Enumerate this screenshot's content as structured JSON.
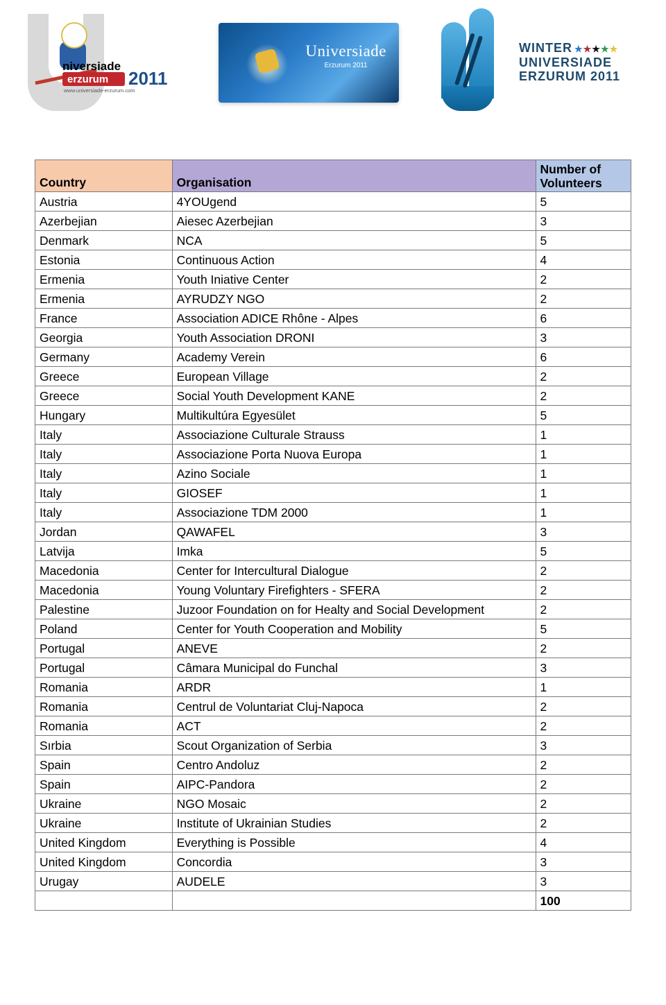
{
  "header_logos": {
    "logo1_text_top": "niversiade",
    "logo1_erzurum": "erzurum",
    "logo1_year": "2011",
    "logo1_url": "www.universiade-erzurum.com",
    "logo2_title": "Universiade",
    "logo2_subtitle": "Erzurum 2011",
    "logo3_line1": "WINTER",
    "logo3_line2": "UNIVERSIADE",
    "logo3_line3": "ERZURUM 2011",
    "star_colors": [
      "#2a7bc8",
      "#b03030",
      "#101010",
      "#2e9c4e",
      "#e6c13a"
    ]
  },
  "table": {
    "headers": {
      "country": "Country",
      "organisation": "Organisation",
      "volunteers_l1": "Number of",
      "volunteers_l2": "Volunteers"
    },
    "header_colors": {
      "country": "#f7caac",
      "organisation": "#b4a7d6",
      "volunteers": "#b4c7e7"
    },
    "border_color": "#7a7a7a",
    "font_size_pt": 13,
    "column_widths_pct": [
      23,
      61,
      16
    ],
    "rows": [
      {
        "country": "Austria",
        "organisation": "4YOUgend",
        "volunteers": "5"
      },
      {
        "country": "Azerbejian",
        "organisation": "Aiesec Azerbejian",
        "volunteers": "3"
      },
      {
        "country": "Denmark",
        "organisation": "NCA",
        "volunteers": "5"
      },
      {
        "country": "Estonia",
        "organisation": "Continuous Action",
        "volunteers": "4"
      },
      {
        "country": "Ermenia",
        "organisation": "Youth Iniative Center",
        "volunteers": "2"
      },
      {
        "country": "Ermenia",
        "organisation": "AYRUDZY NGO",
        "volunteers": "2"
      },
      {
        "country": "France",
        "organisation": "Association ADICE Rhône - Alpes",
        "volunteers": "6"
      },
      {
        "country": "Georgia",
        "organisation": "Youth Association DRONI",
        "volunteers": "3"
      },
      {
        "country": "Germany",
        "organisation": "Academy Verein",
        "volunteers": "6"
      },
      {
        "country": "Greece",
        "organisation": "European Village",
        "volunteers": "2"
      },
      {
        "country": "Greece",
        "organisation": "Social Youth Development KANE",
        "volunteers": "2"
      },
      {
        "country": "Hungary",
        "organisation": "Multikultúra Egyesület",
        "volunteers": "5"
      },
      {
        "country": "Italy",
        "organisation": "Associazione Culturale Strauss",
        "volunteers": "1"
      },
      {
        "country": "Italy",
        "organisation": "Associazione Porta Nuova Europa",
        "volunteers": "1"
      },
      {
        "country": "Italy",
        "organisation": "Azino Sociale",
        "volunteers": "1"
      },
      {
        "country": "Italy",
        "organisation": "GIOSEF",
        "volunteers": "1"
      },
      {
        "country": "Italy",
        "organisation": "Associazione TDM 2000",
        "volunteers": "1"
      },
      {
        "country": "Jordan",
        "organisation": "QAWAFEL",
        "volunteers": "3"
      },
      {
        "country": "Latvija",
        "organisation": "Imka",
        "volunteers": "5"
      },
      {
        "country": "Macedonia",
        "organisation": "Center for Intercultural Dialogue",
        "volunteers": "2"
      },
      {
        "country": "Macedonia",
        "organisation": "Young Voluntary Firefighters - SFERA",
        "volunteers": "2"
      },
      {
        "country": "Palestine",
        "organisation": "Juzoor Foundation on for Healty and Social Development",
        "volunteers": "2"
      },
      {
        "country": "Poland",
        "organisation": "Center for Youth Cooperation and Mobility",
        "volunteers": "5"
      },
      {
        "country": "Portugal",
        "organisation": "ANEVE",
        "volunteers": "2"
      },
      {
        "country": "Portugal",
        "organisation": "Câmara Municipal do Funchal",
        "volunteers": "3"
      },
      {
        "country": "Romania",
        "organisation": "ARDR",
        "volunteers": "1"
      },
      {
        "country": "Romania",
        "organisation": "Centrul de Voluntariat Cluj-Napoca",
        "volunteers": "2"
      },
      {
        "country": "Romania",
        "organisation": "ACT",
        "volunteers": "2"
      },
      {
        "country": "Sırbia",
        "organisation": "Scout Organization of Serbia",
        "volunteers": "3"
      },
      {
        "country": "Spain",
        "organisation": "Centro Andoluz",
        "volunteers": "2"
      },
      {
        "country": "Spain",
        "organisation": "AIPC-Pandora",
        "volunteers": "2"
      },
      {
        "country": "Ukraine",
        "organisation": "NGO Mosaic",
        "volunteers": "2"
      },
      {
        "country": "Ukraine",
        "organisation": "Institute of Ukrainian Studies",
        "volunteers": "2"
      },
      {
        "country": "United Kingdom",
        "organisation": "Everything is Possible",
        "volunteers": "4"
      },
      {
        "country": "United Kingdom",
        "organisation": "Concordia",
        "volunteers": "3"
      },
      {
        "country": "Urugay",
        "organisation": "AUDELE",
        "volunteers": "3"
      }
    ],
    "total": "100"
  }
}
